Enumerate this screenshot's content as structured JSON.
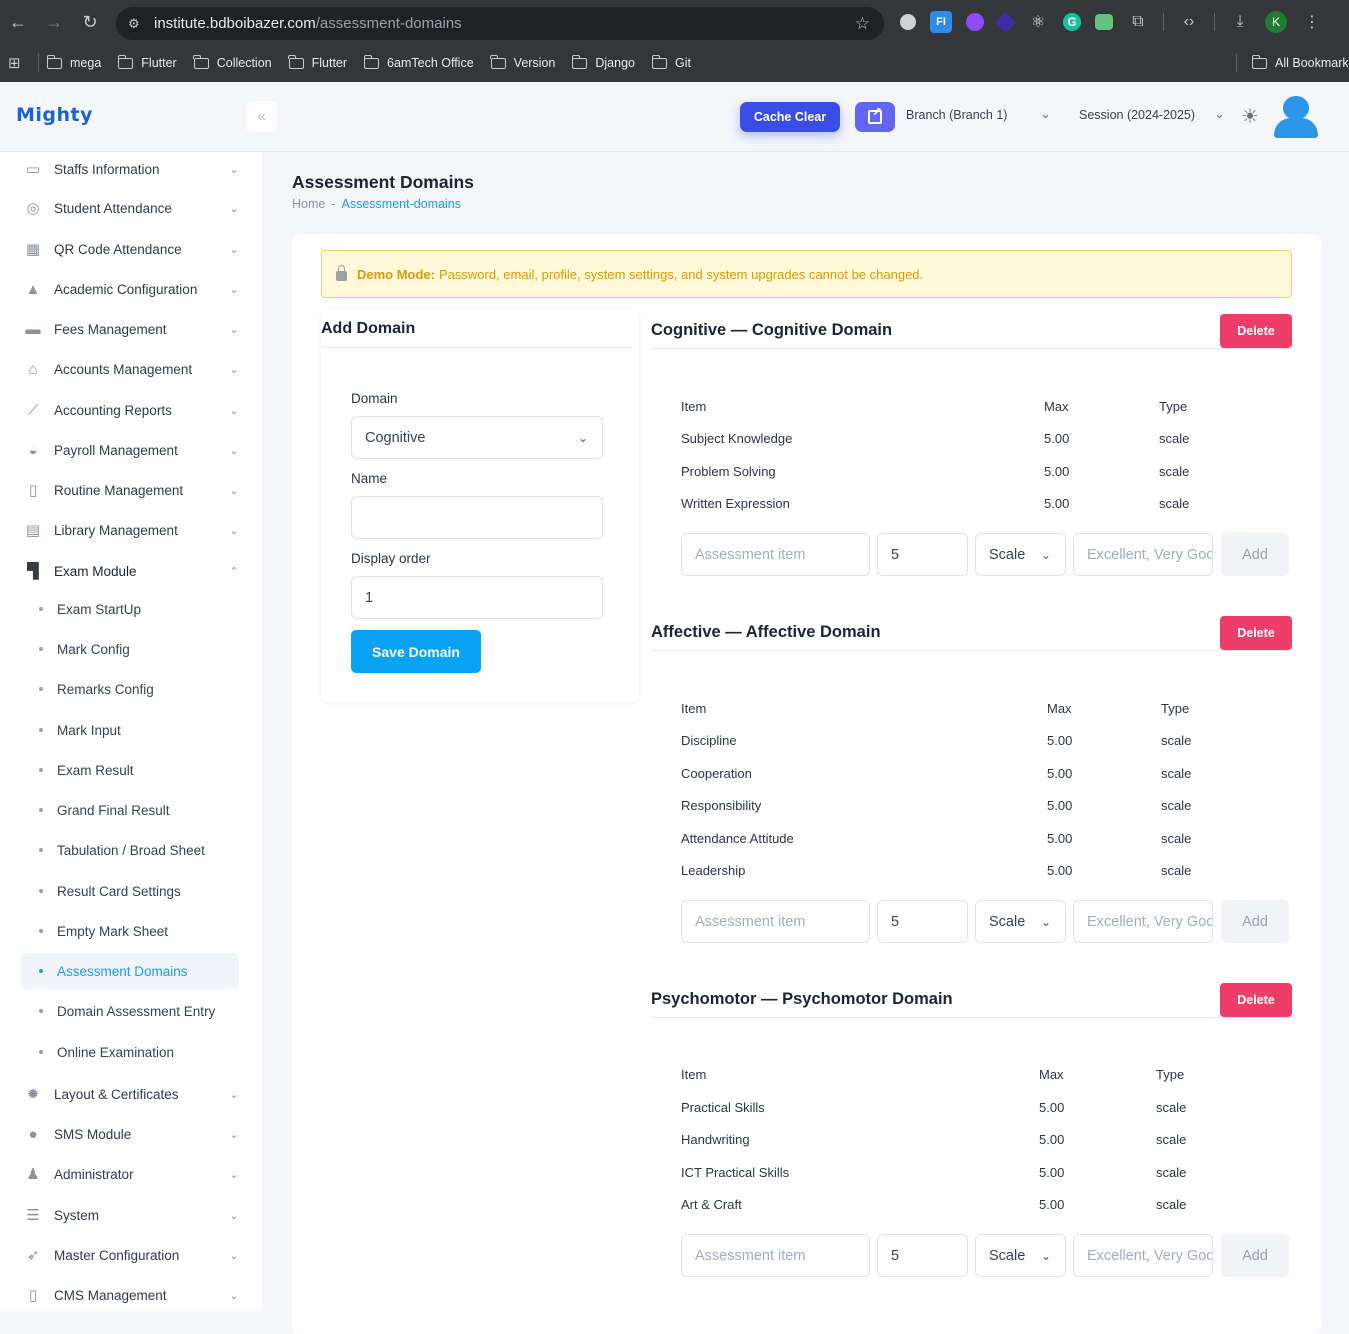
{
  "browser": {
    "url_host": "institute.bdboibazer.com",
    "url_path": "/assessment-domains",
    "profile_initial": "K",
    "bookmarks": [
      "mega",
      "Flutter",
      "Collection",
      "Flutter",
      "6amTech Office",
      "Version",
      "Django",
      "Git"
    ],
    "all_bookmarks": "All Bookmarks"
  },
  "header": {
    "logo": "Mighty",
    "cache_clear": "Cache Clear",
    "branch": "Branch (Branch 1)",
    "session": "Session (2024-2025)"
  },
  "sidebar": {
    "items": [
      {
        "label": "Staffs Information",
        "icon": "staff-icon"
      },
      {
        "label": "Student Attendance",
        "icon": "fingerprint-icon"
      },
      {
        "label": "QR Code Attendance",
        "icon": "qr-code-icon"
      },
      {
        "label": "Academic Configuration",
        "icon": "academic-icon"
      },
      {
        "label": "Fees Management",
        "icon": "money-icon"
      },
      {
        "label": "Accounts Management",
        "icon": "bank-icon"
      },
      {
        "label": "Accounting Reports",
        "icon": "chart-line-icon"
      },
      {
        "label": "Payroll Management",
        "icon": "payroll-icon"
      },
      {
        "label": "Routine Management",
        "icon": "map-icon"
      },
      {
        "label": "Library Management",
        "icon": "book-icon"
      },
      {
        "label": "Exam Module",
        "icon": "layout-icon"
      }
    ],
    "exam_sub": [
      "Exam StartUp",
      "Mark Config",
      "Remarks Config",
      "Mark Input",
      "Exam Result",
      "Grand Final Result",
      "Tabulation / Broad Sheet",
      "Result Card Settings",
      "Empty Mark Sheet",
      "Assessment Domains",
      "Domain Assessment Entry",
      "Online Examination"
    ],
    "after": [
      {
        "label": "Layout & Certificates",
        "icon": "gear-icon"
      },
      {
        "label": "SMS Module",
        "icon": "sms-icon"
      },
      {
        "label": "Administrator",
        "icon": "admin-icon"
      },
      {
        "label": "System",
        "icon": "server-icon"
      },
      {
        "label": "Master Configuration",
        "icon": "rocket-icon"
      },
      {
        "label": "CMS Management",
        "icon": "cms-icon"
      }
    ]
  },
  "page": {
    "title": "Assessment Domains",
    "breadcrumb_home": "Home",
    "breadcrumb_sep": "-",
    "breadcrumb_current": "Assessment-domains",
    "demo_strong": "Demo Mode:",
    "demo_text": "Password, email, profile, system settings, and system upgrades cannot be changed."
  },
  "add_domain": {
    "title": "Add Domain",
    "domain_label": "Domain",
    "domain_value": "Cognitive",
    "name_label": "Name",
    "name_value": "",
    "order_label": "Display order",
    "order_value": "1",
    "save_label": "Save Domain"
  },
  "table_headers": {
    "item": "Item",
    "max": "Max",
    "type": "Type"
  },
  "row_form": {
    "item_placeholder": "Assessment item",
    "max_value": "5",
    "type_value": "Scale",
    "options_placeholder": "Excellent, Very Good",
    "add_label": "Add"
  },
  "domains": [
    {
      "title": "Cognitive — Cognitive Domain",
      "delete_label": "Delete",
      "rows": [
        {
          "item": "Subject Knowledge",
          "max": "5.00",
          "type": "scale"
        },
        {
          "item": "Problem Solving",
          "max": "5.00",
          "type": "scale"
        },
        {
          "item": "Written Expression",
          "max": "5.00",
          "type": "scale"
        }
      ]
    },
    {
      "title": "Affective — Affective Domain",
      "delete_label": "Delete",
      "rows": [
        {
          "item": "Discipline",
          "max": "5.00",
          "type": "scale"
        },
        {
          "item": "Cooperation",
          "max": "5.00",
          "type": "scale"
        },
        {
          "item": "Responsibility",
          "max": "5.00",
          "type": "scale"
        },
        {
          "item": "Attendance Attitude",
          "max": "5.00",
          "type": "scale"
        },
        {
          "item": "Leadership",
          "max": "5.00",
          "type": "scale"
        }
      ]
    },
    {
      "title": "Psychomotor — Psychomotor Domain",
      "delete_label": "Delete",
      "rows": [
        {
          "item": "Practical Skills",
          "max": "5.00",
          "type": "scale"
        },
        {
          "item": "Handwriting",
          "max": "5.00",
          "type": "scale"
        },
        {
          "item": "ICT Practical Skills",
          "max": "5.00",
          "type": "scale"
        },
        {
          "item": "Art & Craft",
          "max": "5.00",
          "type": "scale"
        }
      ]
    }
  ]
}
